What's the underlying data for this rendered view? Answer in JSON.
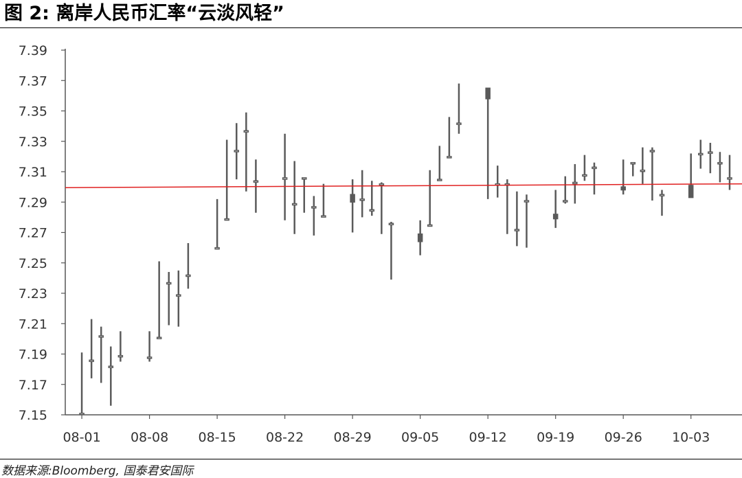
{
  "page": {
    "title": "图 2:  离岸人民币汇率“云淡风轻”",
    "source": "数据来源:Bloomberg, 国泰君安国际"
  },
  "colors": {
    "candle": "#5a5a5a",
    "reference_line": "#e02020",
    "axis": "#555555",
    "text": "#333333"
  },
  "chart_data": {
    "type": "candlestick",
    "title": "离岸人民币汇率“云淡风轻”",
    "xlabel": "",
    "ylabel": "",
    "ylim": [
      7.15,
      7.39
    ],
    "y_ticks": [
      7.15,
      7.17,
      7.19,
      7.21,
      7.23,
      7.25,
      7.27,
      7.29,
      7.31,
      7.33,
      7.35,
      7.37,
      7.39
    ],
    "y_tick_labels": [
      "7.15",
      "7.17",
      "7.19",
      "7.21",
      "7.23",
      "7.25",
      "7.27",
      "7.29",
      "7.31",
      "7.33",
      "7.35",
      "7.37",
      "7.39"
    ],
    "x_ticks": [
      "08-01",
      "08-08",
      "08-15",
      "08-22",
      "08-29",
      "09-05",
      "09-12",
      "09-19",
      "09-26",
      "10-03"
    ],
    "x_range": [
      "07-31",
      "10-07"
    ],
    "grid": false,
    "legend": "none",
    "reference_line": {
      "from": 7.2995,
      "to": 7.302
    },
    "series": [
      {
        "dates": [
          "08-01",
          "08-02",
          "08-03",
          "08-04",
          "08-05",
          "08-08",
          "08-09",
          "08-10",
          "08-11",
          "08-12",
          "08-15",
          "08-16",
          "08-17",
          "08-18",
          "08-19",
          "08-22",
          "08-23",
          "08-24",
          "08-25",
          "08-26",
          "08-29",
          "08-30",
          "08-31",
          "09-01",
          "09-02",
          "09-05",
          "09-06",
          "09-07",
          "09-08",
          "09-09",
          "09-12",
          "09-13",
          "09-14",
          "09-15",
          "09-16",
          "09-19",
          "09-20",
          "09-21",
          "09-22",
          "09-23",
          "09-26",
          "09-27",
          "09-28",
          "09-29",
          "09-30",
          "10-03",
          "10-04",
          "10-05",
          "10-06",
          "10-07"
        ],
        "open": [
          7.151,
          7.186,
          7.202,
          7.182,
          7.189,
          7.188,
          7.201,
          7.237,
          7.229,
          7.242,
          7.26,
          7.279,
          7.324,
          7.337,
          7.304,
          7.305,
          7.289,
          7.306,
          7.287,
          7.281,
          7.295,
          7.292,
          7.285,
          7.302,
          7.276,
          7.269,
          7.275,
          7.305,
          7.32,
          7.342,
          7.365,
          7.302,
          7.302,
          7.272,
          7.291,
          7.282,
          7.291,
          7.303,
          7.308,
          7.313,
          7.3,
          7.316,
          7.311,
          7.324,
          7.295,
          7.301,
          7.322,
          7.323,
          7.316,
          7.306
        ],
        "high": [
          7.191,
          7.213,
          7.208,
          7.195,
          7.205,
          7.205,
          7.251,
          7.244,
          7.245,
          7.263,
          7.292,
          7.331,
          7.342,
          7.349,
          7.318,
          7.335,
          7.317,
          7.306,
          7.294,
          7.302,
          7.305,
          7.311,
          7.304,
          7.303,
          7.277,
          7.278,
          7.311,
          7.327,
          7.346,
          7.368,
          7.365,
          7.314,
          7.305,
          7.297,
          7.295,
          7.298,
          7.307,
          7.315,
          7.321,
          7.316,
          7.318,
          7.316,
          7.326,
          7.326,
          7.298,
          7.322,
          7.331,
          7.329,
          7.323,
          7.321
        ],
        "low": [
          7.15,
          7.174,
          7.171,
          7.156,
          7.185,
          7.185,
          7.201,
          7.209,
          7.208,
          7.233,
          7.259,
          7.278,
          7.305,
          7.297,
          7.283,
          7.278,
          7.269,
          7.283,
          7.268,
          7.28,
          7.27,
          7.28,
          7.281,
          7.269,
          7.239,
          7.255,
          7.275,
          7.305,
          7.32,
          7.335,
          7.292,
          7.293,
          7.269,
          7.261,
          7.26,
          7.273,
          7.289,
          7.289,
          7.304,
          7.295,
          7.295,
          7.307,
          7.302,
          7.291,
          7.281,
          7.293,
          7.312,
          7.309,
          7.303,
          7.298
        ],
        "close": [
          7.151,
          7.186,
          7.202,
          7.182,
          7.189,
          7.188,
          7.201,
          7.237,
          7.229,
          7.242,
          7.26,
          7.279,
          7.324,
          7.337,
          7.304,
          7.306,
          7.289,
          7.306,
          7.287,
          7.281,
          7.29,
          7.292,
          7.285,
          7.302,
          7.276,
          7.264,
          7.275,
          7.305,
          7.32,
          7.342,
          7.358,
          7.302,
          7.302,
          7.272,
          7.291,
          7.279,
          7.291,
          7.303,
          7.308,
          7.313,
          7.298,
          7.316,
          7.311,
          7.324,
          7.295,
          7.293,
          7.322,
          7.323,
          7.316,
          7.306
        ]
      }
    ]
  }
}
